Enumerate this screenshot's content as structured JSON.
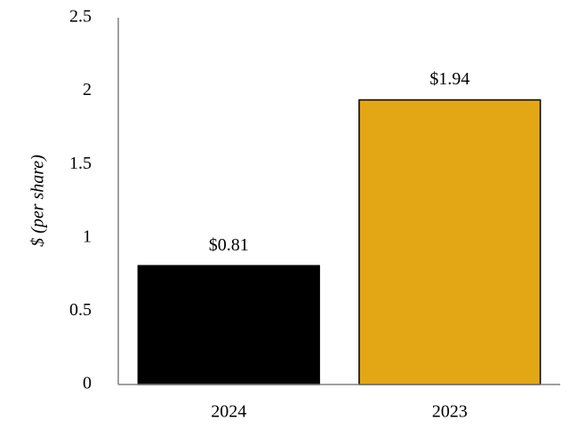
{
  "chart_data": {
    "type": "bar",
    "y_label": "$ (per share)",
    "categories": [
      "2024",
      "2023"
    ],
    "values": [
      0.81,
      1.94
    ],
    "value_labels": [
      "$0.81",
      "$1.94"
    ],
    "colors": [
      "#000000",
      "#e3a615"
    ],
    "ylim": [
      0,
      2.5
    ],
    "yticks": [
      0,
      0.5,
      1,
      1.5,
      2,
      2.5
    ],
    "grid": false
  }
}
